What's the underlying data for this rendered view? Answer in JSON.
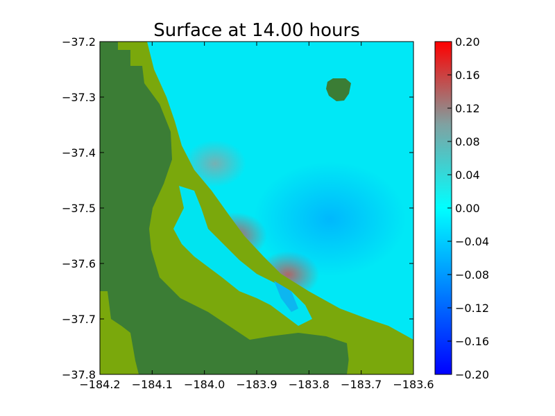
{
  "chart_data": {
    "type": "heatmap",
    "title": "Surface at 14.00 hours",
    "xlabel": "",
    "ylabel": "",
    "xlim": [
      -184.2,
      -183.6
    ],
    "ylim": [
      -37.8,
      -37.2
    ],
    "x_ticks": [
      -184.2,
      -184.1,
      -184.0,
      -183.9,
      -183.8,
      -183.7,
      -183.6
    ],
    "x_tick_labels": [
      "−184.2",
      "−184.1",
      "−184.0",
      "−183.9",
      "−183.8",
      "−183.7",
      "−183.6"
    ],
    "y_ticks": [
      -37.2,
      -37.3,
      -37.4,
      -37.5,
      -37.6,
      -37.7,
      -37.8
    ],
    "y_tick_labels": [
      "−37.2",
      "−37.3",
      "−37.4",
      "−37.5",
      "−37.6",
      "−37.7",
      "−37.8"
    ],
    "colorbar": {
      "range": [
        -0.2,
        0.2
      ],
      "ticks": [
        0.2,
        0.16,
        0.12,
        0.08,
        0.04,
        0.0,
        -0.04,
        -0.08,
        -0.12,
        -0.16,
        -0.2
      ],
      "tick_labels": [
        "0.20",
        "0.16",
        "0.12",
        "0.08",
        "0.04",
        "0.00",
        "−0.04",
        "−0.08",
        "−0.12",
        "−0.16",
        "−0.20"
      ],
      "colors": [
        "#0000ff",
        "#00ffff",
        "#ff0000"
      ]
    },
    "land_colors": [
      "#3b7d35",
      "#7aa80c"
    ],
    "water_color": "#00e6f5",
    "anomalies": [
      {
        "label": "high",
        "lon": -183.98,
        "lat": -37.42,
        "value": 0.1
      },
      {
        "label": "high",
        "lon": -183.94,
        "lat": -37.55,
        "value": 0.12
      },
      {
        "label": "high",
        "lon": -183.84,
        "lat": -37.62,
        "value": 0.14
      },
      {
        "label": "low",
        "lon": -183.76,
        "lat": -37.52,
        "value": -0.05
      },
      {
        "label": "low",
        "lon": -183.84,
        "lat": -37.67,
        "value": -0.1
      }
    ],
    "grid": false
  }
}
